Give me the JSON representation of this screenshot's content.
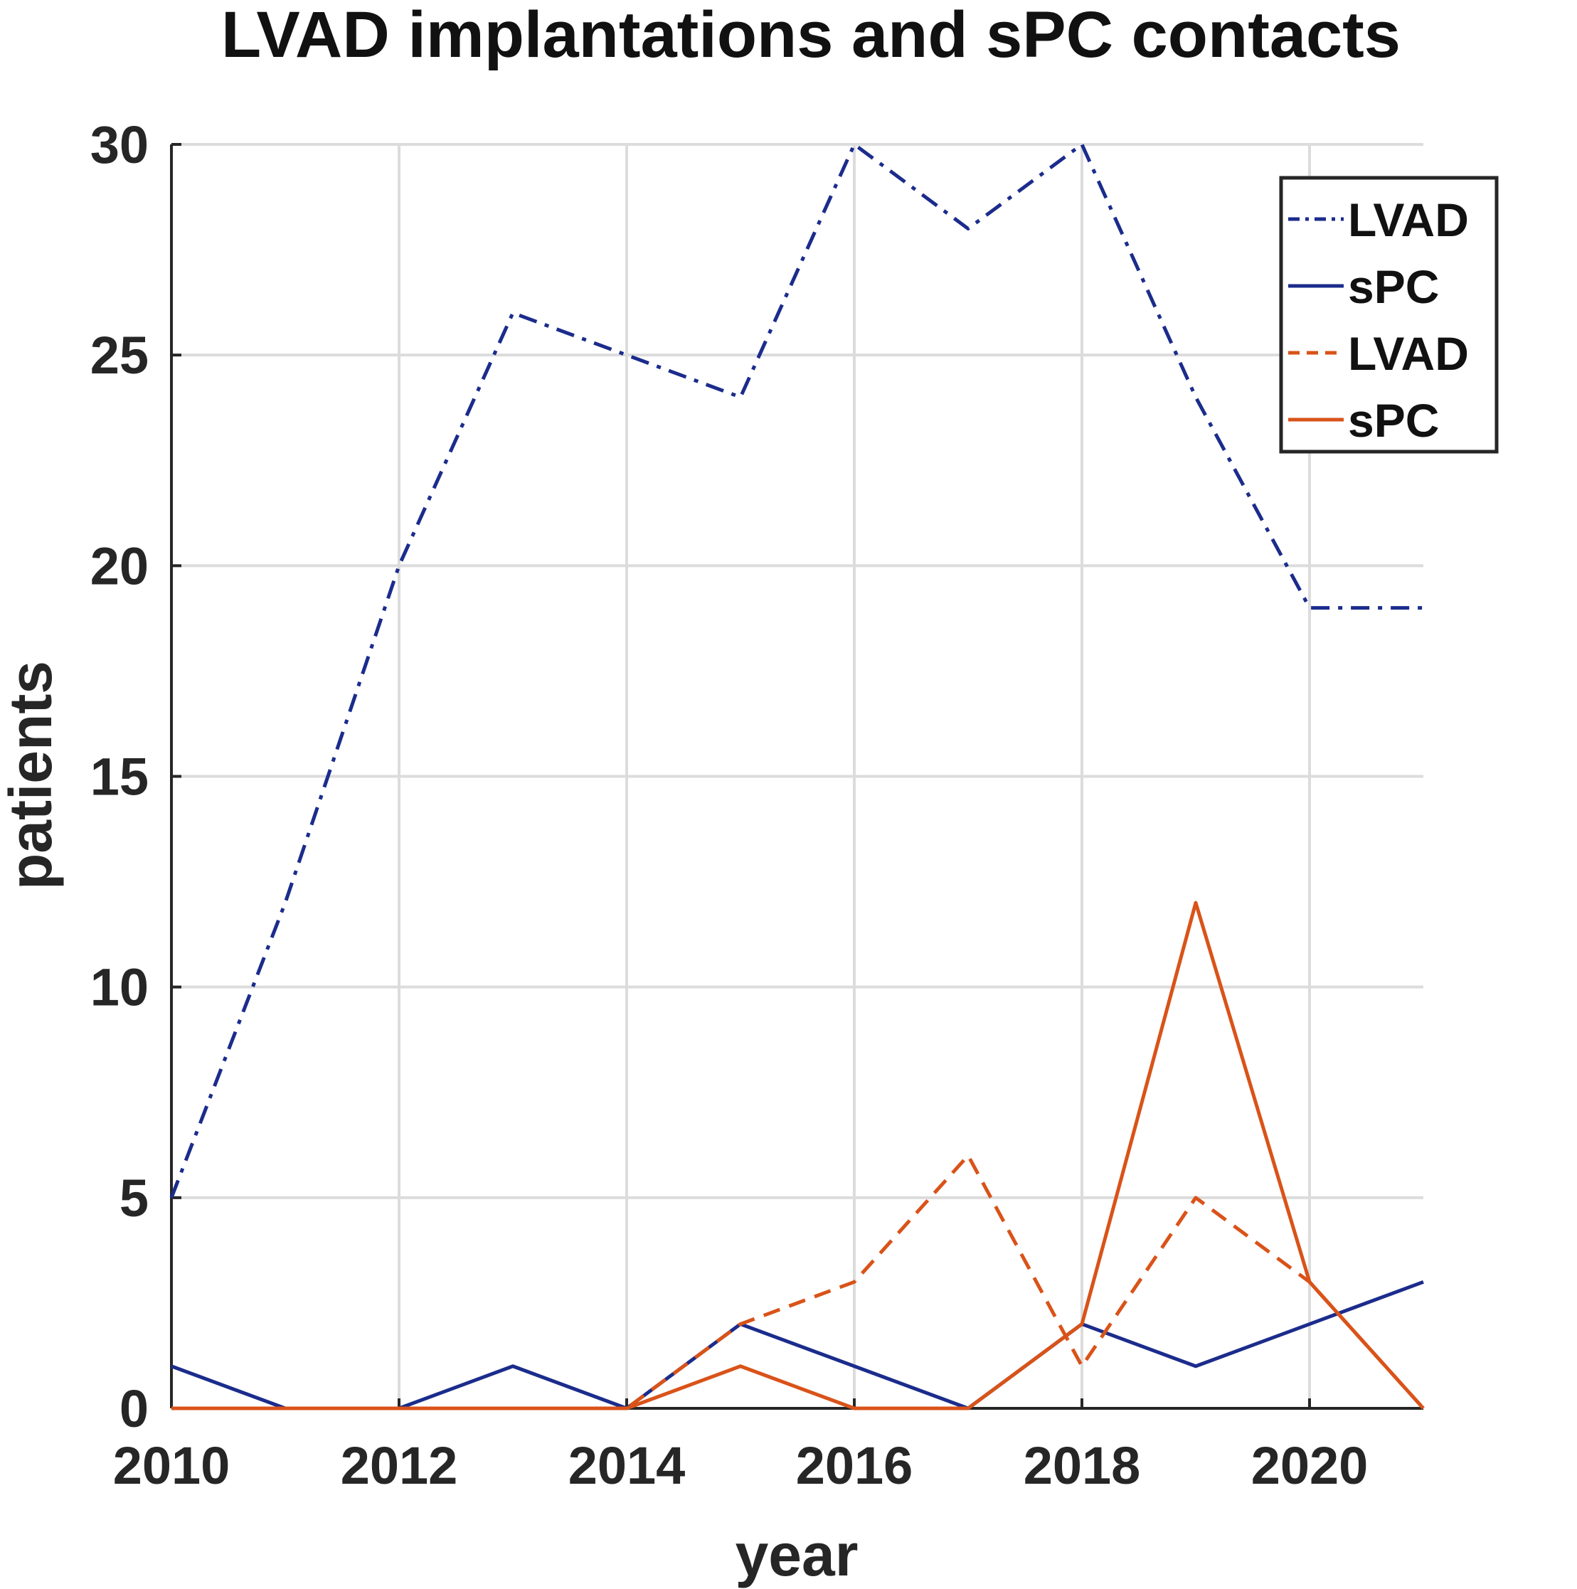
{
  "chart_data": {
    "type": "line",
    "title": "LVAD implantations and sPC contacts",
    "xlabel": "year",
    "ylabel": "patients",
    "xlim": [
      2010,
      2021
    ],
    "ylim": [
      0,
      30
    ],
    "x": [
      2010,
      2011,
      2012,
      2013,
      2014,
      2015,
      2016,
      2017,
      2018,
      2019,
      2020,
      2021
    ],
    "x_ticks": [
      "2010",
      "2012",
      "2014",
      "2016",
      "2018",
      "2020"
    ],
    "x_tick_values": [
      2010,
      2012,
      2014,
      2016,
      2018,
      2020
    ],
    "y_ticks": [
      "0",
      "5",
      "10",
      "15",
      "20",
      "25",
      "30"
    ],
    "y_tick_values": [
      0,
      5,
      10,
      15,
      20,
      25,
      30
    ],
    "grid": true,
    "legend_position": "top-right",
    "series": [
      {
        "name": "LVAD",
        "color": "#1b2c8c",
        "style": "dashdot",
        "values": [
          5,
          12,
          20,
          26,
          25,
          24,
          30,
          28,
          30,
          24,
          19,
          19
        ]
      },
      {
        "name": "sPC",
        "color": "#1b2c8c",
        "style": "solid",
        "values": [
          1,
          0,
          0,
          1,
          0,
          2,
          1,
          0,
          2,
          1,
          2,
          3
        ]
      },
      {
        "name": "LVAD",
        "color": "#d95319",
        "style": "dashed",
        "values": [
          0,
          0,
          0,
          0,
          0,
          2,
          3,
          6,
          1,
          5,
          3,
          0
        ]
      },
      {
        "name": "sPC",
        "color": "#d95319",
        "style": "solid",
        "values": [
          0,
          0,
          0,
          0,
          0,
          1,
          0,
          0,
          2,
          12,
          3,
          0
        ]
      }
    ]
  }
}
